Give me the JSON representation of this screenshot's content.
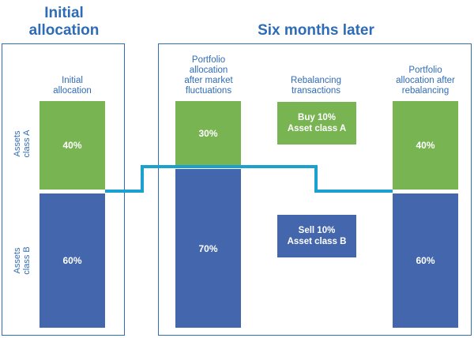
{
  "headings": {
    "initial": "Initial\nallocation",
    "later": "Six months later"
  },
  "side_labels": {
    "a": "Assets\nclass A",
    "b": "Assets\nclass B"
  },
  "columns": [
    {
      "caption": "Initial\nallocation",
      "class_a": 40,
      "class_b": 60,
      "a_label": "40%",
      "b_label": "60%"
    },
    {
      "caption": "Portfolio\nallocation\nafter market\nfluctuations",
      "class_a": 30,
      "class_b": 70,
      "a_label": "30%",
      "b_label": "70%"
    },
    {
      "caption": "Portfolio\nallocation after\nrebalancing",
      "class_a": 40,
      "class_b": 60,
      "a_label": "40%",
      "b_label": "60%"
    }
  ],
  "transactions": {
    "caption": "Rebalancing\ntransactions",
    "buy": "Buy 10%\nAsset class A",
    "sell": "Sell 10%\nAsset class B"
  },
  "colors": {
    "class_a": "#79b453",
    "class_b": "#4466ac",
    "connector": "#1ba1d0",
    "frame": "#2f6cb6"
  }
}
